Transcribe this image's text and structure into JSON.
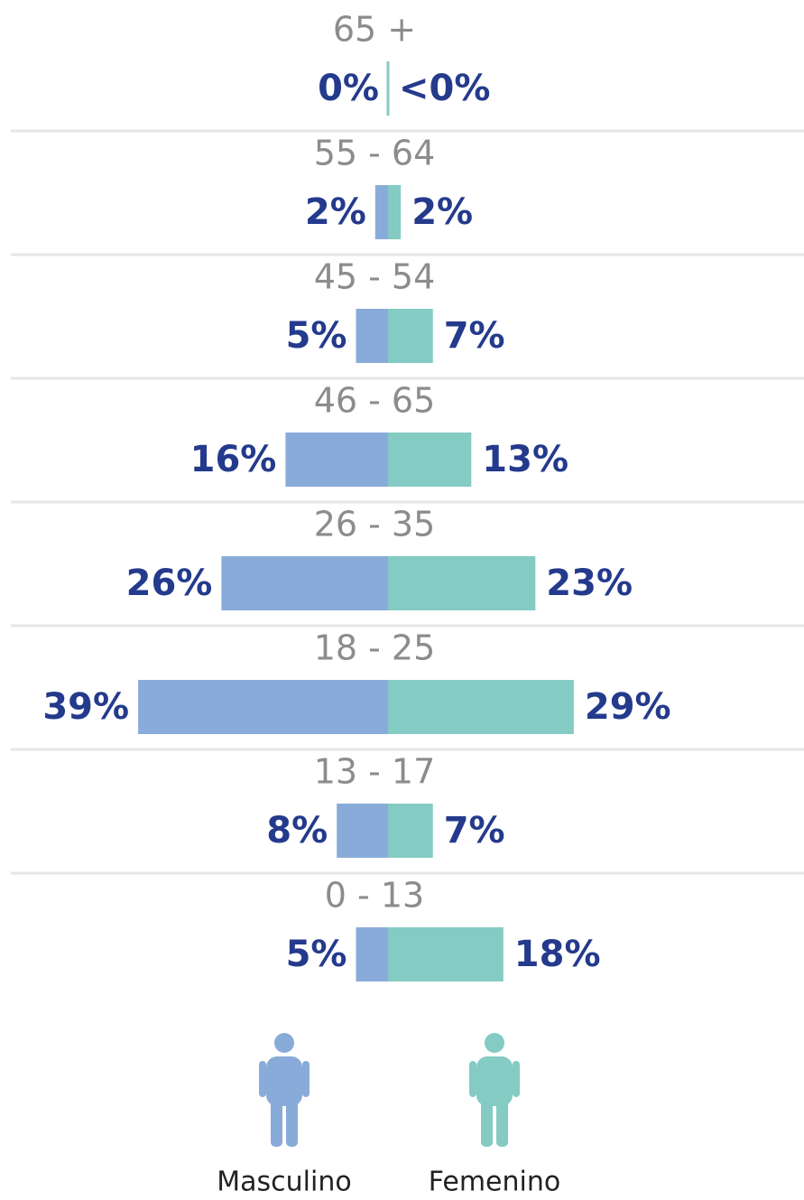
{
  "chart_data": {
    "type": "butterfly",
    "categories": [
      "65 +",
      "55 - 64",
      "45 - 54",
      "46 - 65",
      "26 - 35",
      "18 - 25",
      "13 - 17",
      "0 - 13"
    ],
    "series": [
      {
        "name": "Masculino",
        "color": "#89abd9",
        "values": [
          0,
          2,
          5,
          16,
          26,
          39,
          8,
          5
        ],
        "value_labels": [
          "0%",
          "2%",
          "5%",
          "16%",
          "26%",
          "39%",
          "8%",
          "5%"
        ]
      },
      {
        "name": "Femenino",
        "color": "#84cbc4",
        "values": [
          0,
          2,
          7,
          13,
          23,
          29,
          7,
          18
        ],
        "value_labels": [
          "<0%",
          "2%",
          "7%",
          "13%",
          "23%",
          "29%",
          "7%",
          "18%"
        ]
      }
    ]
  }
}
